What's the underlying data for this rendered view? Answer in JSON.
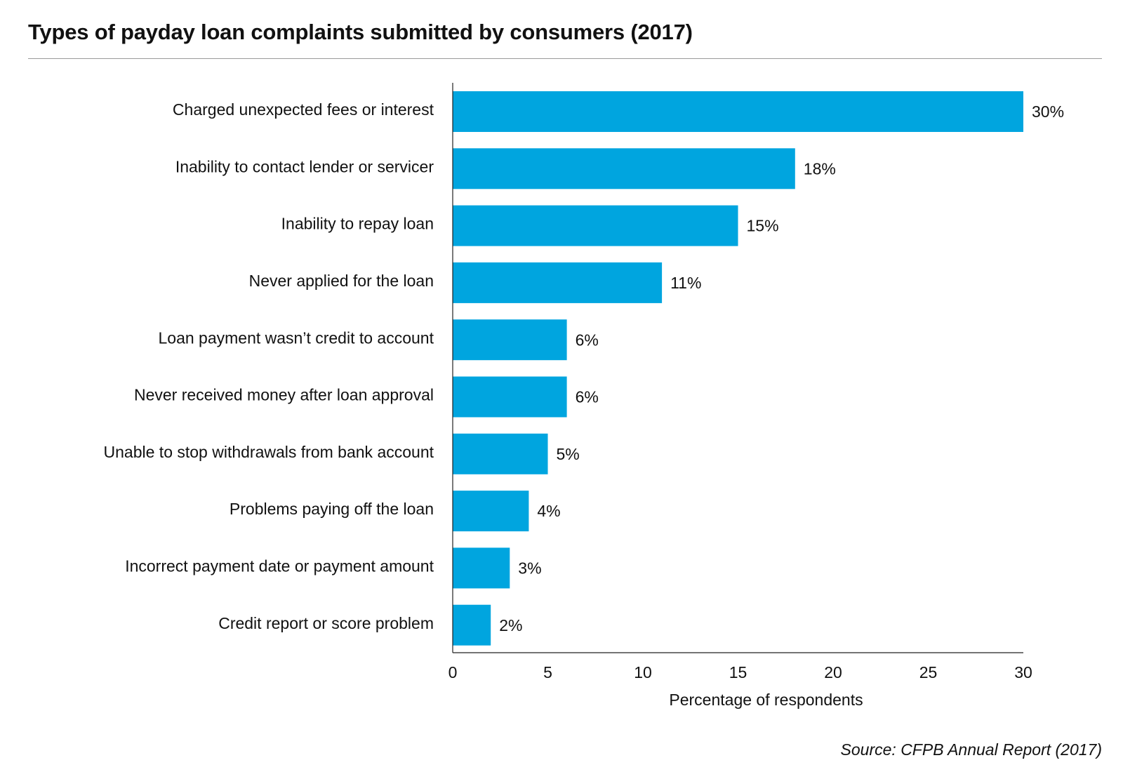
{
  "chart_data": {
    "type": "bar",
    "orientation": "horizontal",
    "title": "Types of payday loan complaints submitted by consumers (2017)",
    "xlabel": "Percentage of respondents",
    "ylabel": "",
    "xlim": [
      0,
      30
    ],
    "xticks": [
      0,
      5,
      10,
      15,
      20,
      25,
      30
    ],
    "grid": false,
    "legend": "none",
    "bar_color": "#00a5df",
    "categories": [
      "Charged unexpected fees or interest",
      "Inability to contact lender or servicer",
      "Inability to repay loan",
      "Never applied for the loan",
      "Loan payment wasn’t credit to account",
      "Never received money after loan approval",
      "Unable to stop withdrawals from bank account",
      "Problems paying off the loan",
      "Incorrect payment date or payment amount",
      "Credit report or score problem"
    ],
    "values": [
      30,
      18,
      15,
      11,
      6,
      6,
      5,
      4,
      3,
      2
    ],
    "data_labels": [
      "30%",
      "18%",
      "15%",
      "11%",
      "6%",
      "6%",
      "5%",
      "4%",
      "3%",
      "2%"
    ]
  },
  "source": "Source: CFPB Annual Report (2017)"
}
